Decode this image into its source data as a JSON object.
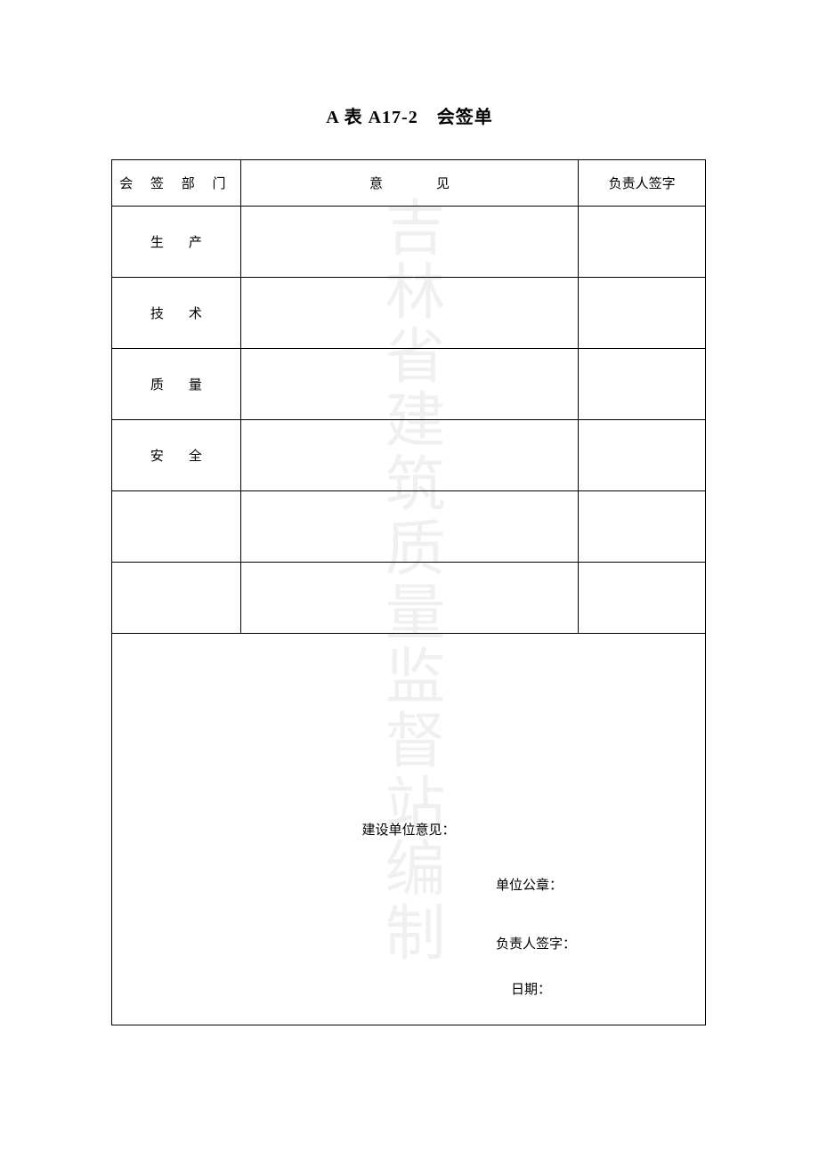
{
  "title": "A 表 A17-2　会签单",
  "table": {
    "headers": {
      "department": "会 签 部 门",
      "opinion": "意见",
      "signature": "负责人签字"
    },
    "rows": [
      {
        "department": "生产",
        "opinion": "",
        "signature": ""
      },
      {
        "department": "技术",
        "opinion": "",
        "signature": ""
      },
      {
        "department": "质量",
        "opinion": "",
        "signature": ""
      },
      {
        "department": "安全",
        "opinion": "",
        "signature": ""
      },
      {
        "department": "",
        "opinion": "",
        "signature": ""
      },
      {
        "department": "",
        "opinion": "",
        "signature": ""
      }
    ],
    "bottom": {
      "label": "建设单位意见：",
      "stamp_label": "单位公章：",
      "sign_label": "负责人签字：",
      "date_label": "日期："
    }
  },
  "watermark": "吉林省建筑质量监督站编制",
  "colors": {
    "background": "#ffffff",
    "border": "#000000",
    "text": "#000000",
    "watermark": "#f0f0f0"
  }
}
